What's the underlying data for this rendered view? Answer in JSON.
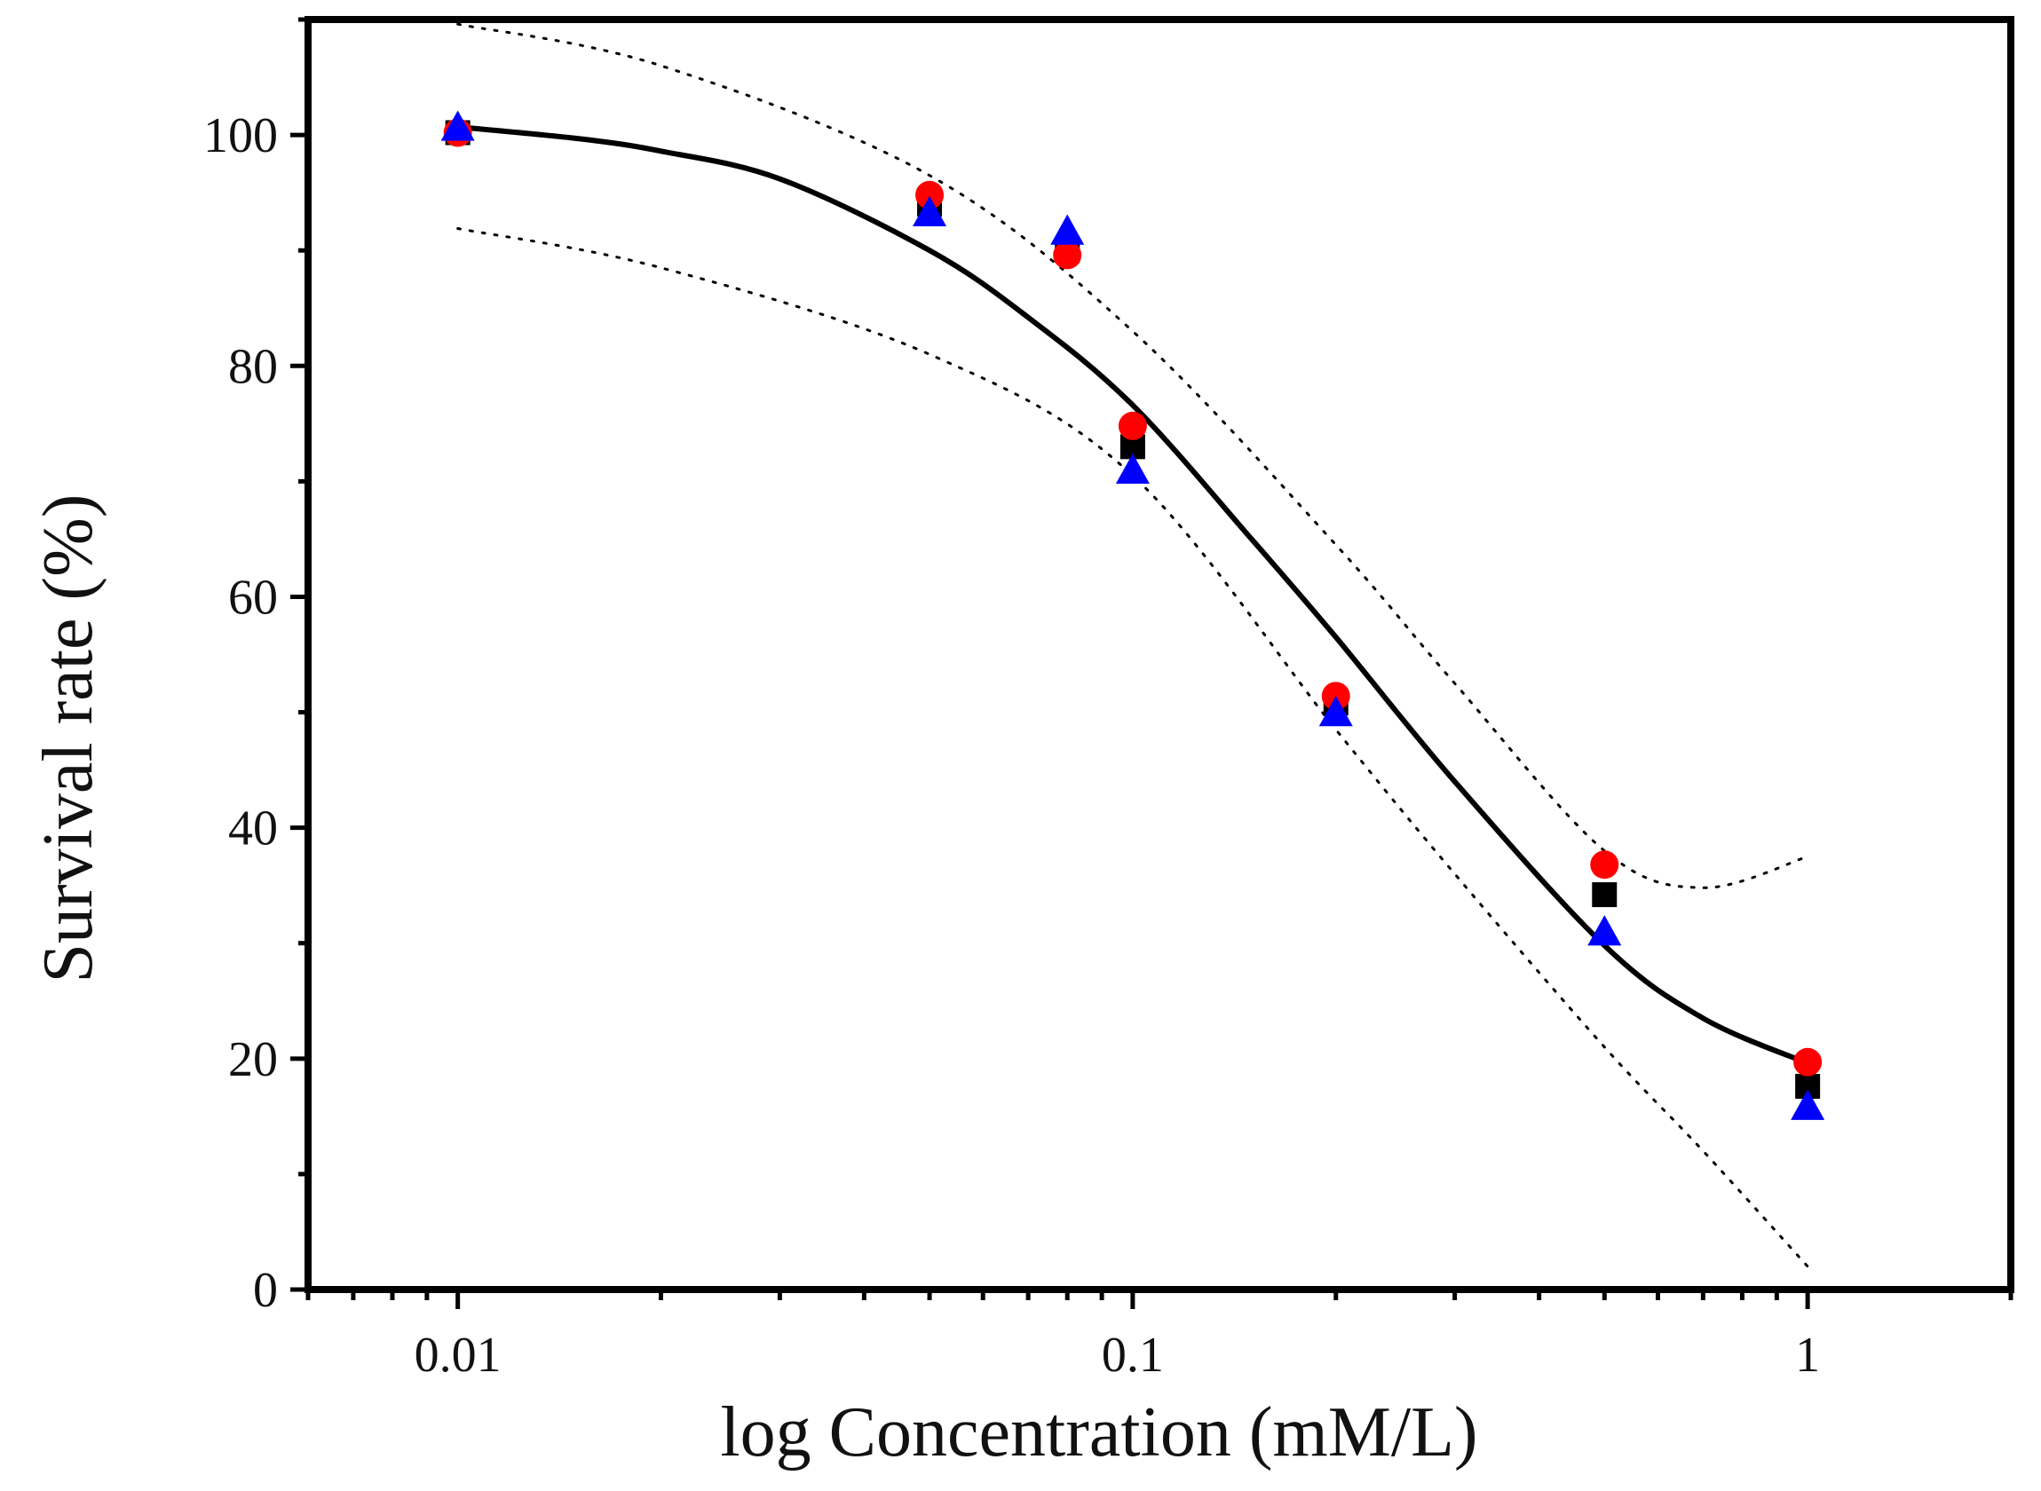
{
  "chart_data": {
    "type": "scatter",
    "title": "",
    "xlabel": "log Concentration (mM/L)",
    "ylabel": "Survival rate (%)",
    "xscale": "log",
    "xlim": [
      0.006,
      2.0
    ],
    "ylim": [
      0,
      110
    ],
    "xticks": [
      {
        "value": 0.01,
        "label": "0.01"
      },
      {
        "value": 0.1,
        "label": "0.1"
      },
      {
        "value": 1,
        "label": "1"
      }
    ],
    "yticks": [
      {
        "value": 0,
        "label": "0"
      },
      {
        "value": 20,
        "label": "20"
      },
      {
        "value": 40,
        "label": "40"
      },
      {
        "value": 60,
        "label": "60"
      },
      {
        "value": 80,
        "label": "80"
      },
      {
        "value": 100,
        "label": "100"
      }
    ],
    "series": [
      {
        "name": "black squares",
        "marker": "square",
        "color": "#000000",
        "x": [
          0.01,
          0.05,
          0.08,
          0.1,
          0.2,
          0.5,
          1.0
        ],
        "y": [
          100.2,
          94.0,
          90.0,
          73.0,
          50.8,
          34.2,
          17.6
        ]
      },
      {
        "name": "red circles",
        "marker": "circle",
        "color": "#ff0000",
        "x": [
          0.01,
          0.05,
          0.08,
          0.1,
          0.2,
          0.5,
          1.0
        ],
        "y": [
          100.2,
          94.8,
          89.6,
          74.8,
          51.4,
          36.8,
          19.7
        ]
      },
      {
        "name": "blue triangles",
        "marker": "triangle",
        "color": "#0000ff",
        "x": [
          0.01,
          0.05,
          0.08,
          0.1,
          0.2,
          0.5,
          1.0
        ],
        "y": [
          100.6,
          93.2,
          91.6,
          70.9,
          49.9,
          30.9,
          15.8
        ]
      }
    ],
    "fit_curve": {
      "name": "fit",
      "style": "solid",
      "color": "#000000",
      "x": [
        0.01,
        0.015,
        0.02,
        0.03,
        0.05,
        0.07,
        0.1,
        0.15,
        0.2,
        0.3,
        0.5,
        0.7,
        1.0
      ],
      "y": [
        100.7,
        99.7,
        98.6,
        96.2,
        90.0,
        84.2,
        76.6,
        65.0,
        56.5,
        44.0,
        29.8,
        23.5,
        19.6
      ]
    },
    "confidence_bands": [
      {
        "name": "upper band",
        "style": "dotted",
        "color": "#000000",
        "x": [
          0.01,
          0.02,
          0.05,
          0.1,
          0.2,
          0.3,
          0.5,
          0.7,
          1.0
        ],
        "y": [
          109.6,
          106.0,
          96.5,
          83.0,
          64.5,
          52.5,
          38.0,
          34.8,
          37.5
        ]
      },
      {
        "name": "lower band",
        "style": "dotted",
        "color": "#000000",
        "x": [
          0.01,
          0.02,
          0.05,
          0.1,
          0.2,
          0.3,
          0.5,
          0.7,
          1.0
        ],
        "y": [
          91.9,
          88.5,
          81.0,
          70.5,
          48.5,
          36.0,
          21.0,
          12.0,
          2.0
        ]
      }
    ]
  }
}
